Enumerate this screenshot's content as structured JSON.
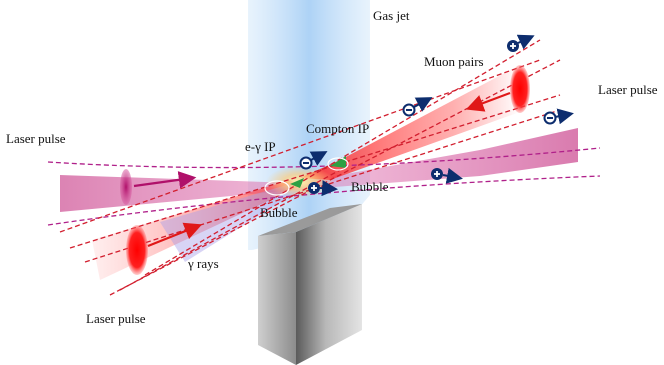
{
  "labels": {
    "gas_jet": "Gas jet",
    "muon_pairs": "Muon pairs",
    "laser_pulse_right": "Laser pulse",
    "laser_pulse_left": "Laser pulse",
    "laser_pulse_bottom": "Laser pulse",
    "egamma_ip": "e-γ IP",
    "compton_ip": "Compton IP",
    "bubble_right": "Bubble",
    "bubble_left": "Bubble",
    "gamma_rays": "γ rays"
  },
  "colors": {
    "gas_jet": "#a9d0f5",
    "laser_beam_pink": "#d05a9a",
    "laser_beam_red": "#ff3030",
    "dashed_lines": "#d21e2e",
    "dashed_magenta": "#b0208a",
    "particle_arrows": "#0d2d6e",
    "nozzle_dark": "#6e6e6e",
    "nozzle_light": "#d8d8d8"
  },
  "icons": {
    "positive_particle": "plus-circle-icon",
    "negative_particle": "minus-circle-icon"
  }
}
